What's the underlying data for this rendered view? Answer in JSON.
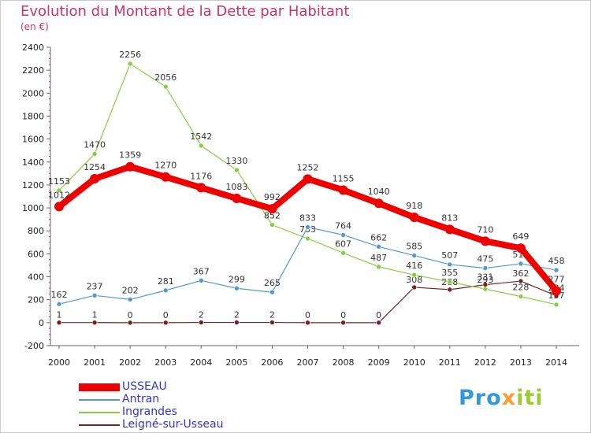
{
  "title": "Evolution du Montant de la Dette par Habitant",
  "subtitle": "(en €)",
  "logo": {
    "text": "Proxiti",
    "parts": [
      "Pro",
      "x",
      "iti"
    ]
  },
  "chart_data": {
    "type": "line",
    "categories": [
      "2000",
      "2001",
      "2002",
      "2003",
      "2004",
      "2005",
      "2006",
      "2007",
      "2008",
      "2009",
      "2010",
      "2011",
      "2012",
      "2013",
      "2014"
    ],
    "ylim": [
      -200,
      2400
    ],
    "yticks": [
      -200,
      0,
      200,
      400,
      600,
      800,
      1000,
      1200,
      1400,
      1600,
      1800,
      2000,
      2200,
      2400
    ],
    "grid": false,
    "legend_position": "bottom-left",
    "series": [
      {
        "name": "Leigné-sur-Usseau",
        "color": "#772222",
        "values": [
          1,
          1,
          0,
          0,
          2,
          2,
          2,
          0,
          0,
          0,
          308,
          288,
          331,
          362,
          234
        ]
      },
      {
        "name": "Ingrandes",
        "color": "#88cc44",
        "values": [
          1153,
          1470,
          2256,
          2056,
          1542,
          1330,
          852,
          733,
          607,
          487,
          416,
          355,
          293,
          228,
          157
        ]
      },
      {
        "name": "Antran",
        "color": "#5599cc",
        "values": [
          162,
          237,
          202,
          281,
          367,
          299,
          265,
          833,
          764,
          662,
          585,
          507,
          475,
          514,
          458
        ]
      },
      {
        "name": "USSEAU",
        "color": "#ee0000",
        "values": [
          1012,
          1254,
          1359,
          1270,
          1176,
          1083,
          992,
          1252,
          1155,
          1040,
          918,
          813,
          710,
          649,
          277
        ]
      }
    ],
    "legend_order": [
      "USSEAU",
      "Antran",
      "Ingrandes",
      "Leigné-sur-Usseau"
    ]
  }
}
